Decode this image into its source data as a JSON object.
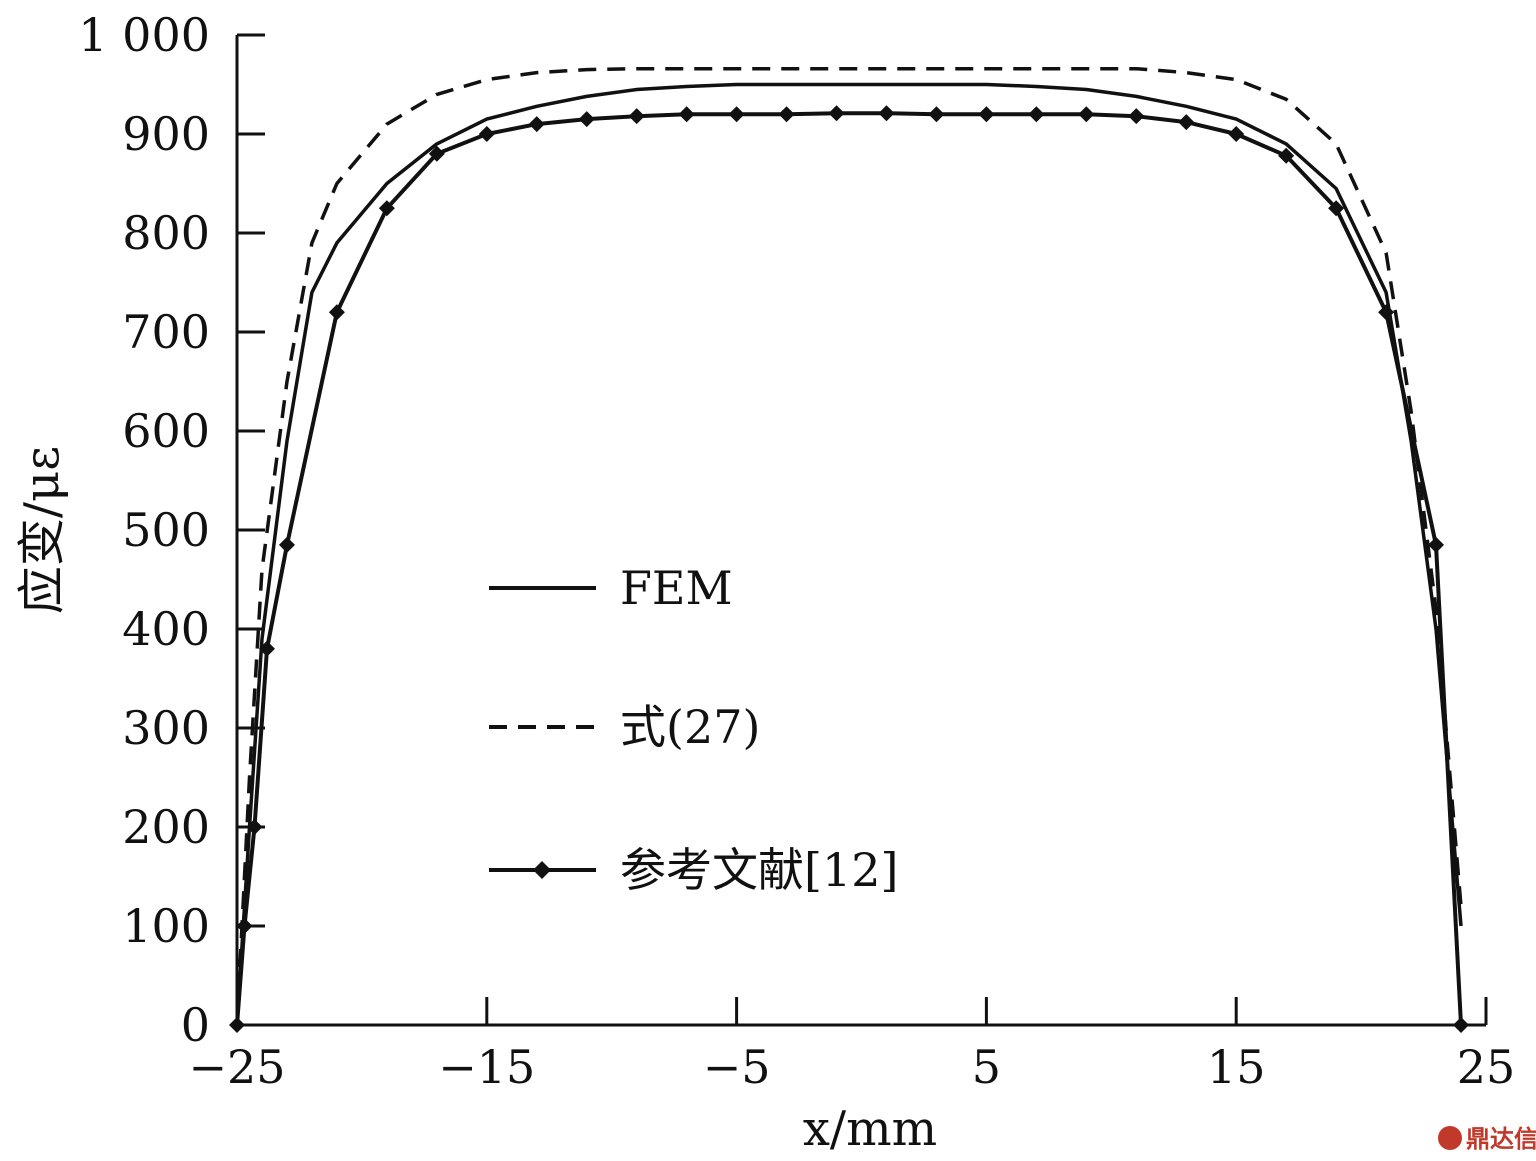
{
  "chart_data": {
    "type": "line",
    "xlabel": "x/mm",
    "ylabel": "应变/με",
    "xlim": [
      -25,
      25
    ],
    "ylim": [
      0,
      1000
    ],
    "x_ticks": [
      -25,
      -15,
      -5,
      5,
      15,
      25
    ],
    "x_tick_labels": [
      "−25",
      "−15",
      "−5",
      "5",
      "15",
      "25"
    ],
    "y_ticks": [
      0,
      100,
      200,
      300,
      400,
      500,
      600,
      700,
      800,
      900,
      1000
    ],
    "y_tick_labels": [
      "0",
      "100",
      "200",
      "300",
      "400",
      "500",
      "600",
      "700",
      "800",
      "900",
      "1 000"
    ],
    "grid": false,
    "legend_position": "center-left",
    "series": [
      {
        "name": "FEM",
        "style": "solid",
        "marker": "none",
        "color": "#111111",
        "x": [
          -25,
          -24.5,
          -24,
          -23,
          -22,
          -21,
          -19,
          -17,
          -15,
          -13,
          -11,
          -9,
          -7,
          -5,
          -3,
          -1,
          1,
          3,
          5,
          7,
          9,
          11,
          13,
          15,
          17,
          19,
          21,
          22,
          23,
          24
        ],
        "y": [
          0,
          200,
          390,
          590,
          740,
          790,
          850,
          890,
          915,
          928,
          938,
          945,
          948,
          950,
          950,
          950,
          950,
          950,
          950,
          948,
          945,
          938,
          928,
          915,
          890,
          845,
          740,
          590,
          400,
          100
        ]
      },
      {
        "name": "式(27)",
        "style": "dashed",
        "marker": "none",
        "color": "#111111",
        "x": [
          -25,
          -24.5,
          -24,
          -23,
          -22,
          -21,
          -19,
          -17,
          -15,
          -13,
          -11,
          -9,
          -7,
          -5,
          -3,
          -1,
          1,
          3,
          5,
          7,
          9,
          11,
          13,
          15,
          17,
          19,
          21,
          22,
          23,
          24
        ],
        "y": [
          0,
          250,
          460,
          650,
          790,
          850,
          910,
          940,
          955,
          962,
          965,
          966,
          966,
          966,
          966,
          966,
          966,
          966,
          966,
          966,
          966,
          966,
          962,
          955,
          935,
          890,
          780,
          620,
          420,
          120
        ]
      },
      {
        "name": "参考文献[12]",
        "style": "solid",
        "marker": "diamond",
        "color": "#111111",
        "x": [
          -25,
          -24.7,
          -24.3,
          -23.8,
          -23,
          -21,
          -19,
          -17,
          -15,
          -13,
          -11,
          -9,
          -7,
          -5,
          -3,
          -1,
          1,
          3,
          5,
          7,
          9,
          11,
          13,
          15,
          17,
          19,
          21,
          23,
          24
        ],
        "y": [
          0,
          100,
          200,
          380,
          485,
          720,
          825,
          880,
          900,
          910,
          915,
          918,
          920,
          920,
          920,
          921,
          921,
          920,
          920,
          920,
          920,
          918,
          912,
          900,
          878,
          825,
          720,
          485,
          0
        ]
      }
    ]
  },
  "watermark": "鼎达信"
}
